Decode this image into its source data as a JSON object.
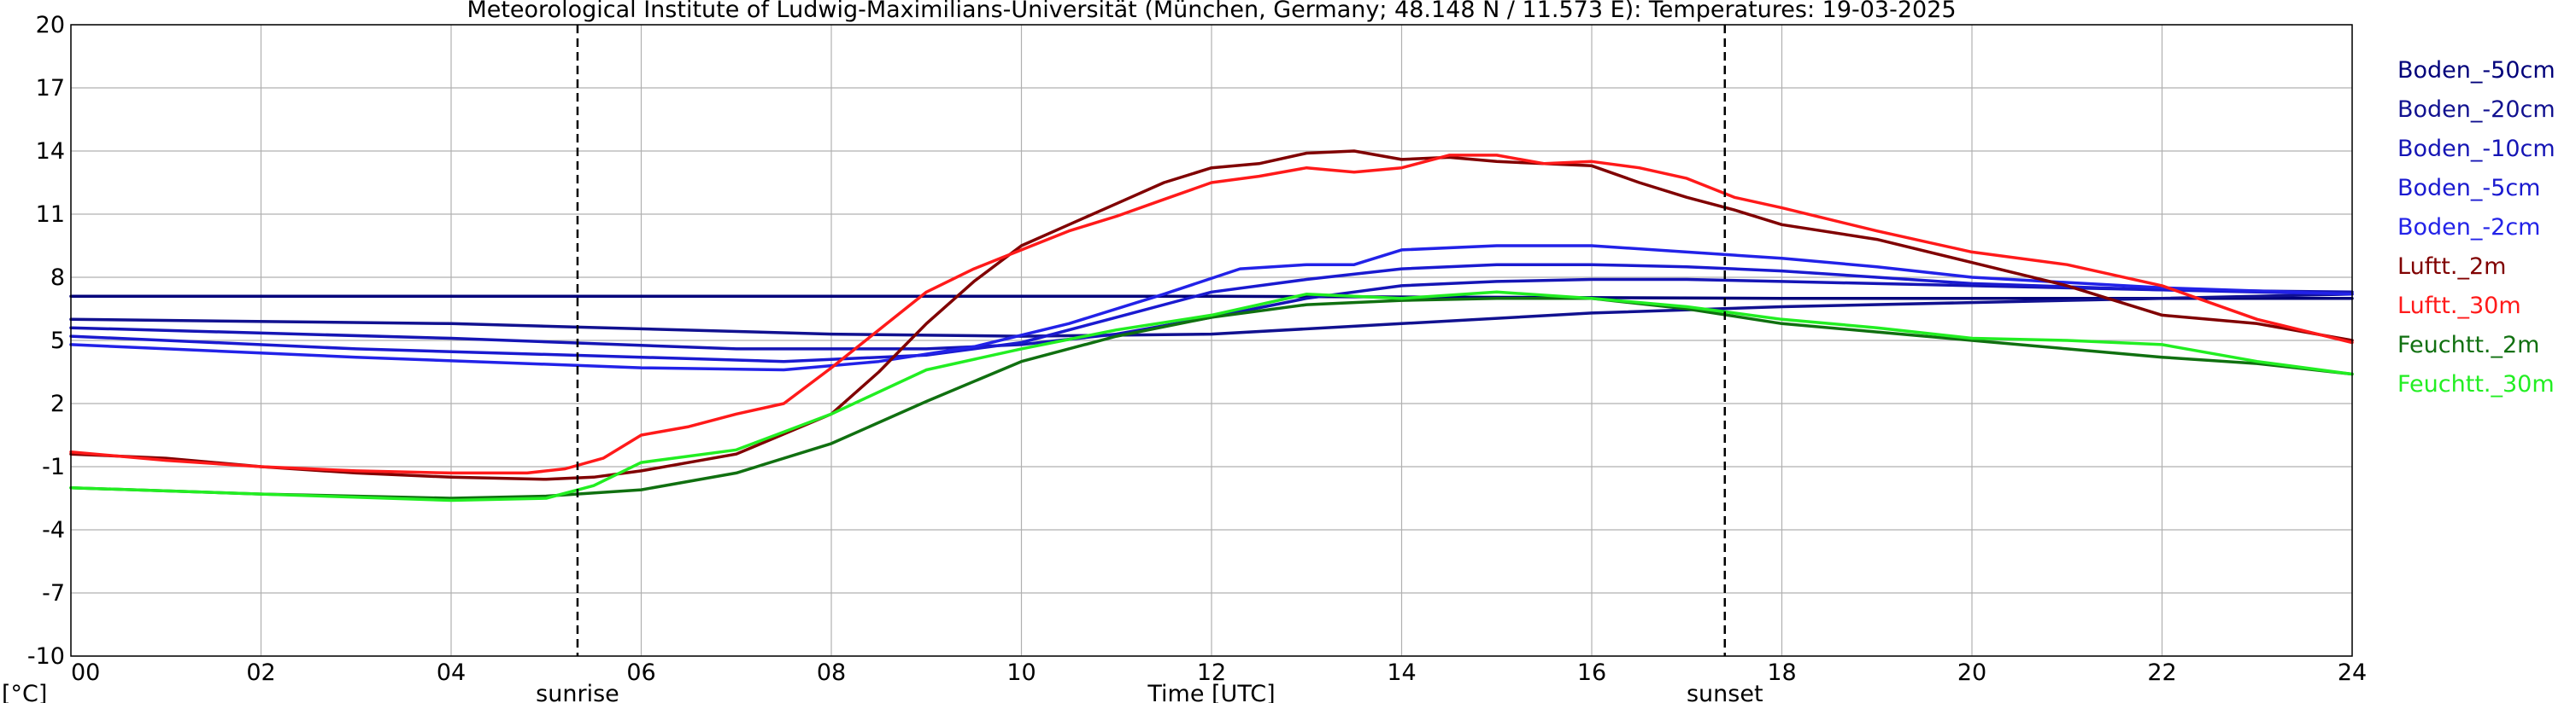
{
  "chart_data": {
    "type": "line",
    "title": "Meteorological Institute of Ludwig-Maximilians-Universität (München, Germany; 48.148 N / 11.573 E):  Temperatures: 19-03-2025",
    "xlabel": "Time [UTC]",
    "ylabel": "[°C]",
    "xlim": [
      0,
      24
    ],
    "ylim": [
      -10,
      20
    ],
    "x_ticks": [
      "00",
      "02",
      "04",
      "06",
      "08",
      "10",
      "12",
      "14",
      "16",
      "18",
      "20",
      "22",
      "24"
    ],
    "y_ticks": [
      "20",
      "17",
      "14",
      "11",
      "8",
      "5",
      "2",
      "-1",
      "-4",
      "-7",
      "-10"
    ],
    "grid": true,
    "legend_position": "right",
    "annotations": [
      {
        "label": "sunrise",
        "x": 5.33
      },
      {
        "label": "sunset",
        "x": 17.4
      }
    ],
    "series": [
      {
        "name": "Boden_-50cm",
        "color": "#00007a",
        "points": [
          [
            0,
            7.1
          ],
          [
            6,
            7.1
          ],
          [
            12,
            7.1
          ],
          [
            18,
            7.0
          ],
          [
            24,
            7.0
          ]
        ]
      },
      {
        "name": "Boden_-20cm",
        "color": "#111190",
        "points": [
          [
            0,
            6.0
          ],
          [
            4,
            5.8
          ],
          [
            8,
            5.3
          ],
          [
            10,
            5.2
          ],
          [
            12,
            5.3
          ],
          [
            14,
            5.8
          ],
          [
            16,
            6.3
          ],
          [
            18,
            6.6
          ],
          [
            20,
            6.8
          ],
          [
            22,
            7.0
          ],
          [
            24,
            7.2
          ]
        ]
      },
      {
        "name": "Boden_-10cm",
        "color": "#1515b5",
        "points": [
          [
            0,
            5.6
          ],
          [
            4,
            5.1
          ],
          [
            7,
            4.6
          ],
          [
            9,
            4.6
          ],
          [
            10,
            4.8
          ],
          [
            11,
            5.3
          ],
          [
            12,
            6.1
          ],
          [
            13,
            7.0
          ],
          [
            14,
            7.6
          ],
          [
            15,
            7.8
          ],
          [
            16,
            7.9
          ],
          [
            17,
            7.9
          ],
          [
            18,
            7.8
          ],
          [
            20,
            7.6
          ],
          [
            22,
            7.4
          ],
          [
            24,
            7.3
          ]
        ]
      },
      {
        "name": "Boden_-5cm",
        "color": "#1a1ad0",
        "points": [
          [
            0,
            5.2
          ],
          [
            3,
            4.6
          ],
          [
            6,
            4.2
          ],
          [
            7.5,
            4.0
          ],
          [
            9,
            4.3
          ],
          [
            10,
            4.9
          ],
          [
            11,
            6.1
          ],
          [
            12,
            7.3
          ],
          [
            13,
            7.9
          ],
          [
            14,
            8.4
          ],
          [
            15,
            8.6
          ],
          [
            16,
            8.6
          ],
          [
            17,
            8.5
          ],
          [
            18,
            8.3
          ],
          [
            19,
            8.0
          ],
          [
            20,
            7.7
          ],
          [
            22,
            7.4
          ],
          [
            24,
            7.2
          ]
        ]
      },
      {
        "name": "Boden_-2cm",
        "color": "#2222e8",
        "points": [
          [
            0,
            4.8
          ],
          [
            3,
            4.2
          ],
          [
            6,
            3.7
          ],
          [
            7.5,
            3.6
          ],
          [
            8.5,
            4.0
          ],
          [
            9.5,
            4.7
          ],
          [
            10.5,
            5.8
          ],
          [
            11.5,
            7.2
          ],
          [
            12.3,
            8.4
          ],
          [
            13,
            8.6
          ],
          [
            13.5,
            8.6
          ],
          [
            14,
            9.3
          ],
          [
            15,
            9.5
          ],
          [
            16,
            9.5
          ],
          [
            17,
            9.2
          ],
          [
            18,
            8.9
          ],
          [
            19,
            8.5
          ],
          [
            20,
            8.0
          ],
          [
            22,
            7.5
          ],
          [
            24,
            7.2
          ]
        ]
      },
      {
        "name": "Luftt._2m",
        "color": "#800000",
        "points": [
          [
            0,
            -0.4
          ],
          [
            1,
            -0.6
          ],
          [
            2,
            -1.0
          ],
          [
            3,
            -1.3
          ],
          [
            4,
            -1.5
          ],
          [
            5,
            -1.6
          ],
          [
            5.5,
            -1.5
          ],
          [
            6,
            -1.2
          ],
          [
            7,
            -0.4
          ],
          [
            8,
            1.5
          ],
          [
            8.5,
            3.5
          ],
          [
            9,
            5.8
          ],
          [
            9.5,
            7.8
          ],
          [
            10,
            9.5
          ],
          [
            10.5,
            10.5
          ],
          [
            11,
            11.5
          ],
          [
            11.5,
            12.5
          ],
          [
            12,
            13.2
          ],
          [
            12.5,
            13.4
          ],
          [
            13,
            13.9
          ],
          [
            13.5,
            14.0
          ],
          [
            14,
            13.6
          ],
          [
            14.5,
            13.7
          ],
          [
            15,
            13.5
          ],
          [
            15.5,
            13.4
          ],
          [
            16,
            13.3
          ],
          [
            16.5,
            12.5
          ],
          [
            17,
            11.8
          ],
          [
            17.5,
            11.2
          ],
          [
            18,
            10.5
          ],
          [
            19,
            9.8
          ],
          [
            20,
            8.7
          ],
          [
            21,
            7.6
          ],
          [
            22,
            6.2
          ],
          [
            23,
            5.8
          ],
          [
            24,
            5.0
          ]
        ]
      },
      {
        "name": "Luftt._30m",
        "color": "#ff1a1a",
        "points": [
          [
            0,
            -0.3
          ],
          [
            1,
            -0.7
          ],
          [
            2,
            -1.0
          ],
          [
            3,
            -1.2
          ],
          [
            4,
            -1.3
          ],
          [
            4.8,
            -1.3
          ],
          [
            5.2,
            -1.1
          ],
          [
            5.6,
            -0.6
          ],
          [
            6,
            0.5
          ],
          [
            6.5,
            0.9
          ],
          [
            7,
            1.5
          ],
          [
            7.5,
            2.0
          ],
          [
            8,
            3.7
          ],
          [
            8.5,
            5.5
          ],
          [
            9,
            7.3
          ],
          [
            9.5,
            8.4
          ],
          [
            10,
            9.3
          ],
          [
            10.5,
            10.2
          ],
          [
            11,
            10.9
          ],
          [
            11.5,
            11.7
          ],
          [
            12,
            12.5
          ],
          [
            12.5,
            12.8
          ],
          [
            13,
            13.2
          ],
          [
            13.5,
            13.0
          ],
          [
            14,
            13.2
          ],
          [
            14.5,
            13.8
          ],
          [
            15,
            13.8
          ],
          [
            15.5,
            13.4
          ],
          [
            16,
            13.5
          ],
          [
            16.5,
            13.2
          ],
          [
            17,
            12.7
          ],
          [
            17.5,
            11.8
          ],
          [
            18,
            11.3
          ],
          [
            19,
            10.2
          ],
          [
            20,
            9.2
          ],
          [
            21,
            8.6
          ],
          [
            22,
            7.6
          ],
          [
            23,
            6.0
          ],
          [
            24,
            4.9
          ]
        ]
      },
      {
        "name": "Feuchtt._2m",
        "color": "#107010",
        "points": [
          [
            0,
            -2.0
          ],
          [
            2,
            -2.3
          ],
          [
            4,
            -2.5
          ],
          [
            5,
            -2.4
          ],
          [
            6,
            -2.1
          ],
          [
            7,
            -1.3
          ],
          [
            8,
            0.1
          ],
          [
            9,
            2.1
          ],
          [
            10,
            4.0
          ],
          [
            11,
            5.2
          ],
          [
            12,
            6.1
          ],
          [
            13,
            6.7
          ],
          [
            14,
            6.9
          ],
          [
            15,
            7.0
          ],
          [
            16,
            7.0
          ],
          [
            17,
            6.5
          ],
          [
            18,
            5.8
          ],
          [
            19,
            5.4
          ],
          [
            20,
            5.0
          ],
          [
            21,
            4.6
          ],
          [
            22,
            4.2
          ],
          [
            23,
            3.9
          ],
          [
            24,
            3.4
          ]
        ]
      },
      {
        "name": "Feuchtt._30m",
        "color": "#22ee22",
        "points": [
          [
            0,
            -2.0
          ],
          [
            2,
            -2.3
          ],
          [
            4,
            -2.6
          ],
          [
            5,
            -2.5
          ],
          [
            5.5,
            -1.9
          ],
          [
            6,
            -0.8
          ],
          [
            7,
            -0.2
          ],
          [
            8,
            1.5
          ],
          [
            9,
            3.6
          ],
          [
            10,
            4.6
          ],
          [
            11,
            5.5
          ],
          [
            12,
            6.2
          ],
          [
            13,
            7.2
          ],
          [
            14,
            7.0
          ],
          [
            15,
            7.3
          ],
          [
            16,
            7.0
          ],
          [
            17,
            6.6
          ],
          [
            18,
            6.0
          ],
          [
            19,
            5.6
          ],
          [
            20,
            5.1
          ],
          [
            21,
            5.0
          ],
          [
            22,
            4.8
          ],
          [
            23,
            4.0
          ],
          [
            24,
            3.4
          ]
        ]
      }
    ]
  }
}
